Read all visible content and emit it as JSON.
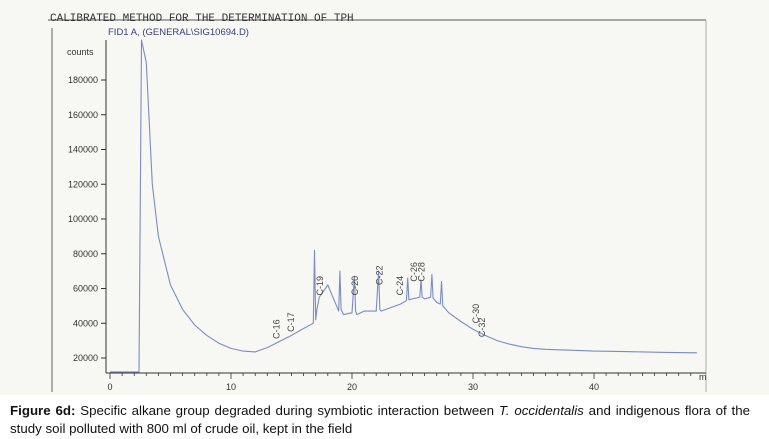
{
  "chart_data": {
    "type": "line",
    "title": "CALIBRATED METHOD FOR THE DETERMINATION OF TPH",
    "subtitle": "FID1 A, (GENERAL\\SIG10694.D)",
    "ylabel": "counts",
    "xlabel": "",
    "x_unit": "m",
    "xlim": [
      0,
      49
    ],
    "ylim": [
      10000,
      195000
    ],
    "x_ticks": [
      0,
      10,
      20,
      30,
      40
    ],
    "y_ticks": [
      20000,
      40000,
      60000,
      80000,
      100000,
      120000,
      140000,
      160000,
      180000
    ],
    "grid": false,
    "series": [
      {
        "color": "#7d8bc4",
        "x": [
          0.0,
          0.5,
          1.5,
          2.4,
          2.6,
          3.0,
          3.5,
          4,
          5,
          6,
          7,
          8,
          9,
          10,
          11,
          12,
          13,
          14,
          15,
          16,
          16.8,
          16.9,
          17.0,
          17.1,
          17.3,
          18,
          18.9,
          19.0,
          19.1,
          19.3,
          20,
          20.2,
          20.3,
          20.4,
          21,
          22,
          22.2,
          22.3,
          22.4,
          23,
          24,
          24.5,
          24.6,
          24.7,
          25,
          25.6,
          25.7,
          25.8,
          26,
          26.5,
          26.6,
          26.7,
          27,
          27.3,
          27.4,
          27.5,
          28,
          29,
          30,
          31,
          32,
          33,
          34,
          35,
          36,
          37,
          38,
          40,
          42,
          44,
          46,
          48.5
        ],
        "y": [
          12000,
          12000,
          12000,
          12000,
          300000,
          190000,
          120000,
          90000,
          62000,
          48000,
          39000,
          33000,
          28500,
          25500,
          24000,
          23500,
          26000,
          29500,
          33000,
          37000,
          40000,
          82000,
          42000,
          48000,
          55000,
          62000,
          47000,
          70000,
          48000,
          45000,
          46000,
          67000,
          47000,
          45000,
          47000,
          47000,
          70000,
          48000,
          47000,
          48500,
          51000,
          53000,
          66000,
          53500,
          54000,
          55000,
          65000,
          55000,
          54000,
          55000,
          68000,
          54500,
          52000,
          51000,
          64000,
          50000,
          46000,
          41000,
          36500,
          33000,
          30000,
          28000,
          26500,
          25500,
          25000,
          24700,
          24500,
          24000,
          23800,
          23500,
          23200,
          23000
        ]
      }
    ],
    "peak_labels": [
      {
        "text": "C-16",
        "x": 14.0,
        "y": 31000
      },
      {
        "text": "C-17",
        "x": 15.2,
        "y": 35000
      },
      {
        "text": "C-19",
        "x": 17.6,
        "y": 56000
      },
      {
        "text": "C-20",
        "x": 20.5,
        "y": 56000
      },
      {
        "text": "C-22",
        "x": 22.5,
        "y": 62000
      },
      {
        "text": "C-24",
        "x": 24.2,
        "y": 56000
      },
      {
        "text": "C-26",
        "x": 25.4,
        "y": 64000
      },
      {
        "text": "C-28",
        "x": 26.0,
        "y": 64000
      },
      {
        "text": "C-30",
        "x": 30.5,
        "y": 40000
      },
      {
        "text": "C-32",
        "x": 31.0,
        "y": 32000
      }
    ]
  },
  "caption": {
    "label": "Figure 6d:",
    "text_before": " Specific alkane group degraded during symbiotic interaction between ",
    "species": "T. occidentalis",
    "text_after": " and indigenous flora of the study soil polluted with 800 ml of crude oil, kept in the field"
  }
}
